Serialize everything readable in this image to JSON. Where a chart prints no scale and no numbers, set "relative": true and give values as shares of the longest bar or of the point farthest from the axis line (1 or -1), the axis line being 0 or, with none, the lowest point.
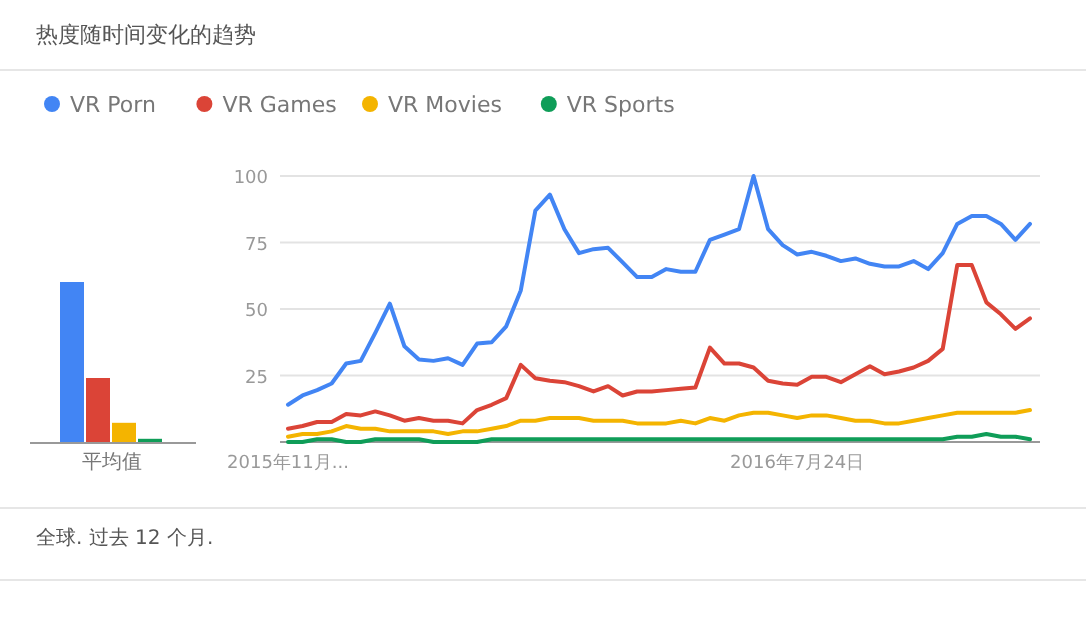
{
  "chart_data": [
    {
      "type": "bar",
      "relative": true,
      "categories": [
        "平均值"
      ],
      "series": [
        {
          "color": "#4285f4",
          "values": [
            1
          ]
        },
        {
          "color": "#db4437",
          "values": [
            0.4
          ]
        },
        {
          "color": "#f4b400",
          "values": [
            0.12
          ]
        },
        {
          "color": "#0f9d58",
          "values": [
            0.02
          ]
        }
      ]
    },
    {
      "type": "line",
      "title": "热度随时间变化的趋势",
      "annotations": [
        "全球. 过去 12 个月."
      ],
      "legend": "top left",
      "grid": "y",
      "marker": "none",
      "line_style": "solid",
      "categories": [
        "2015年11月...",
        null,
        null,
        null,
        null,
        null,
        null,
        null,
        null,
        null,
        null,
        null,
        null,
        null,
        null,
        null,
        null,
        null,
        null,
        null,
        null,
        null,
        null,
        null,
        null,
        null,
        null,
        null,
        null,
        null,
        null,
        null,
        null,
        null,
        null,
        "2016年7月24日",
        null,
        null,
        null,
        null,
        null,
        null,
        null,
        null,
        null,
        null,
        null,
        null,
        null,
        null,
        null,
        null
      ],
      "ylim": [
        0,
        100
      ],
      "yticks": [
        {
          "value": 0,
          "label": null
        },
        25,
        50,
        75,
        100
      ],
      "series": [
        {
          "name": "VR Porn",
          "color": "#4285f4",
          "values": [
            14,
            17.5,
            19.5,
            22,
            29.5,
            30.5,
            41,
            52,
            36,
            31,
            30.5,
            31.5,
            29,
            37,
            37.5,
            43.5,
            57,
            87,
            93,
            80,
            71,
            72.5,
            73,
            67.5,
            62,
            62,
            65,
            64,
            64,
            76,
            78,
            80,
            100,
            80,
            74,
            70.5,
            71.5,
            70,
            68,
            69,
            67,
            66,
            66,
            68,
            65,
            71,
            82,
            85,
            85,
            82,
            76,
            82
          ]
        },
        {
          "name": "VR Games",
          "color": "#db4437",
          "values": [
            5,
            6,
            7.5,
            7.5,
            10.5,
            10,
            11.5,
            10,
            8,
            9,
            8,
            8,
            7,
            12,
            14,
            16.5,
            29,
            24,
            23,
            22.5,
            21,
            19,
            21,
            17.5,
            19,
            19,
            19.5,
            20,
            20.5,
            35.5,
            29.5,
            29.5,
            28,
            23,
            22,
            21.5,
            24.5,
            24.5,
            22.5,
            25.5,
            28.5,
            25.5,
            26.5,
            28,
            30.5,
            35,
            66.5,
            66.5,
            52.5,
            48,
            42.5,
            46.5
          ]
        },
        {
          "name": "VR Movies",
          "color": "#f4b400",
          "values": [
            2,
            3,
            3,
            4,
            6,
            5,
            5,
            4,
            4,
            4,
            4,
            3,
            4,
            4,
            5,
            6,
            8,
            8,
            9,
            9,
            9,
            8,
            8,
            8,
            7,
            7,
            7,
            8,
            7,
            9,
            8,
            10,
            11,
            11,
            10,
            9,
            10,
            10,
            9,
            8,
            8,
            7,
            7,
            8,
            9,
            10,
            11,
            11,
            11,
            11,
            11,
            12
          ]
        },
        {
          "name": "VR Sports",
          "color": "#0f9d58",
          "values": [
            0,
            0,
            1,
            1,
            0,
            0,
            1,
            1,
            1,
            1,
            0,
            0,
            0,
            0,
            1,
            1,
            1,
            1,
            1,
            1,
            1,
            1,
            1,
            1,
            1,
            1,
            1,
            1,
            1,
            1,
            1,
            1,
            1,
            1,
            1,
            1,
            1,
            1,
            1,
            1,
            1,
            1,
            1,
            1,
            1,
            1,
            2,
            2,
            3,
            2,
            2,
            1
          ]
        }
      ]
    }
  ]
}
